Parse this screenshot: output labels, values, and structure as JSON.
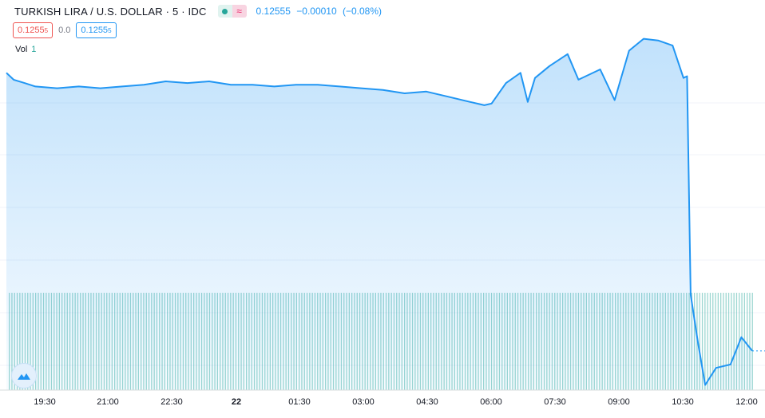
{
  "legend": {
    "symbol": "TURKISH LIRA / U.S. DOLLAR · 5 · IDC",
    "price": "0.12555",
    "change": "−0.00010",
    "change_pct": "(−0.08%)",
    "sell": "0.1255",
    "sell_sup": "5",
    "spread": "0.0",
    "buy": "0.1255",
    "buy_sup": "5",
    "vol_label": "Vol",
    "vol_value": "1"
  },
  "icons": {
    "status": "dot-icon",
    "compare": "wave-icon",
    "logo": "tradingview-logo-icon"
  },
  "colors": {
    "line": "#2196f3",
    "fill": "#2196f3",
    "volume": "#26a69a",
    "sell": "#ef5350",
    "buy": "#2196f3"
  },
  "chart_data": {
    "type": "area",
    "title": "TURKISH LIRA / U.S. DOLLAR · 5 · IDC",
    "x_tick_labels": [
      "19:30",
      "21:00",
      "22:30",
      "22",
      "01:30",
      "03:00",
      "04:30",
      "06:00",
      "07:30",
      "09:00",
      "10:30",
      "12:00"
    ],
    "y_range": [
      0.12532,
      0.12742
    ],
    "series": [
      {
        "points": [
          [
            "18:50",
            0.12718
          ],
          [
            "19:00",
            0.12714
          ],
          [
            "19:15",
            0.12712
          ],
          [
            "19:30",
            0.1271
          ],
          [
            "20:00",
            0.12709
          ],
          [
            "20:30",
            0.1271
          ],
          [
            "21:00",
            0.12709
          ],
          [
            "21:30",
            0.1271
          ],
          [
            "22:00",
            0.12711
          ],
          [
            "22:30",
            0.12713
          ],
          [
            "23:00",
            0.12712
          ],
          [
            "23:30",
            0.12713
          ],
          [
            "00:00",
            0.12711
          ],
          [
            "00:30",
            0.12711
          ],
          [
            "01:00",
            0.1271
          ],
          [
            "01:30",
            0.12711
          ],
          [
            "02:00",
            0.12711
          ],
          [
            "02:30",
            0.1271
          ],
          [
            "03:00",
            0.12709
          ],
          [
            "03:30",
            0.12708
          ],
          [
            "04:00",
            0.12706
          ],
          [
            "04:30",
            0.12707
          ],
          [
            "05:00",
            0.12704
          ],
          [
            "05:30",
            0.12701
          ],
          [
            "05:50",
            0.12699
          ],
          [
            "06:00",
            0.127
          ],
          [
            "06:20",
            0.12712
          ],
          [
            "06:40",
            0.12718
          ],
          [
            "06:50",
            0.12701
          ],
          [
            "07:00",
            0.12715
          ],
          [
            "07:20",
            0.12722
          ],
          [
            "07:45",
            0.12729
          ],
          [
            "08:00",
            0.12714
          ],
          [
            "08:30",
            0.1272
          ],
          [
            "08:50",
            0.12702
          ],
          [
            "09:10",
            0.12731
          ],
          [
            "09:30",
            0.12738
          ],
          [
            "09:50",
            0.12737
          ],
          [
            "10:10",
            0.12734
          ],
          [
            "10:25",
            0.12715
          ],
          [
            "10:30",
            0.12716
          ],
          [
            "10:35",
            0.12588
          ],
          [
            "10:45",
            0.1256
          ],
          [
            "10:55",
            0.12535
          ],
          [
            "11:10",
            0.12545
          ],
          [
            "11:30",
            0.12547
          ],
          [
            "11:45",
            0.12563
          ],
          [
            "12:00",
            0.12555
          ]
        ]
      }
    ],
    "volume": {
      "label": "Vol",
      "value": 1
    },
    "grid": true
  }
}
